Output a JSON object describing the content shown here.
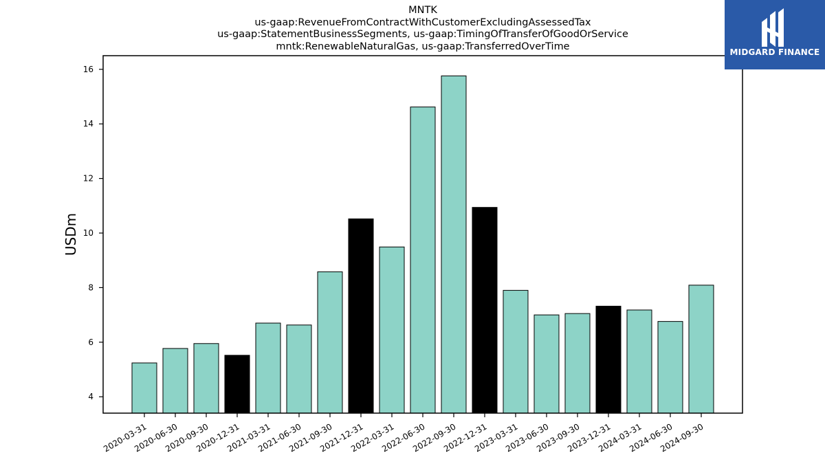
{
  "chart_data": {
    "type": "bar",
    "title_lines": [
      "MNTK",
      "us-gaap:RevenueFromContractWithCustomerExcludingAssessedTax",
      "us-gaap:StatementBusinessSegments, us-gaap:TimingOfTransferOfGoodOrService",
      "mntk:RenewableNaturalGas, us-gaap:TransferredOverTime"
    ],
    "xlabel": "",
    "ylabel": "USDm",
    "categories": [
      "2020-03-31",
      "2020-06-30",
      "2020-09-30",
      "2020-12-31",
      "2021-03-31",
      "2021-06-30",
      "2021-09-30",
      "2021-12-31",
      "2022-03-31",
      "2022-06-30",
      "2022-09-30",
      "2022-12-31",
      "2023-03-31",
      "2023-06-30",
      "2023-09-30",
      "2023-12-31",
      "2024-03-31",
      "2024-06-30",
      "2024-09-30"
    ],
    "values": [
      5.24,
      5.77,
      5.95,
      5.52,
      6.7,
      6.63,
      8.58,
      10.52,
      9.49,
      14.62,
      15.76,
      10.94,
      7.9,
      7.0,
      7.05,
      7.32,
      7.18,
      6.76,
      8.09
    ],
    "highlight": [
      false,
      false,
      false,
      true,
      false,
      false,
      false,
      true,
      false,
      false,
      false,
      true,
      false,
      false,
      false,
      true,
      false,
      false,
      false
    ],
    "ylim": [
      3.4,
      16.5
    ],
    "yticks": [
      4,
      6,
      8,
      10,
      12,
      14,
      16
    ],
    "colors": {
      "bar": "#8dd3c7",
      "highlight": "#000000",
      "edge": "#000000"
    },
    "grid": false,
    "legend": "none"
  },
  "logo": {
    "text": "MIDGARD FINANCE",
    "background": "#2a5aa8"
  }
}
